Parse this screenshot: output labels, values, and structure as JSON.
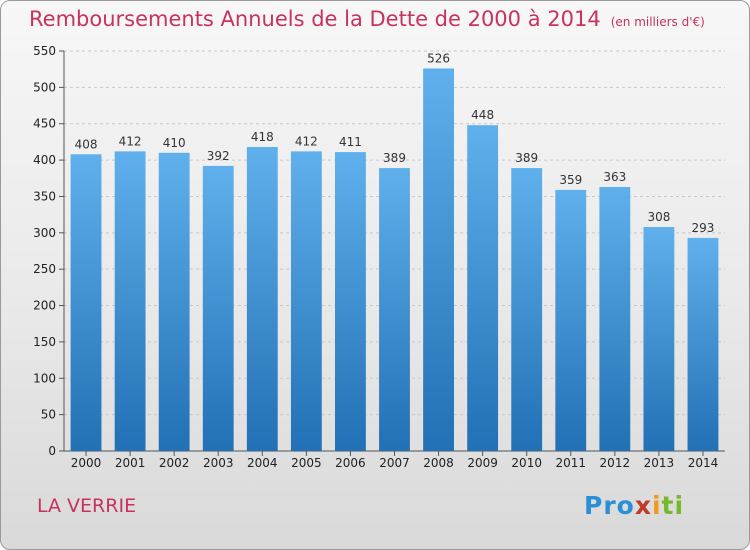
{
  "title": "Remboursements Annuels de la Dette de 2000 à 2014",
  "unit": "(en milliers d'€)",
  "place": "LA VERRIE",
  "logo": [
    "Pro",
    "x",
    "i",
    "ti"
  ],
  "colors": {
    "title": "#c8325c",
    "bar_top": "#5fb0ec",
    "bar_bottom": "#2270b5"
  },
  "chart_data": {
    "type": "bar",
    "title": "Remboursements Annuels de la Dette de 2000 à 2014",
    "subtitle": "(en milliers d'€)",
    "categories": [
      "2000",
      "2001",
      "2002",
      "2003",
      "2004",
      "2005",
      "2006",
      "2007",
      "2008",
      "2009",
      "2010",
      "2011",
      "2012",
      "2013",
      "2014"
    ],
    "values": [
      408,
      412,
      410,
      392,
      418,
      412,
      411,
      389,
      526,
      448,
      389,
      359,
      363,
      308,
      293
    ],
    "ylim": [
      0,
      550
    ],
    "yticks": [
      0,
      50,
      100,
      150,
      200,
      250,
      300,
      350,
      400,
      450,
      500,
      550
    ],
    "grid": true,
    "legend": "none"
  }
}
